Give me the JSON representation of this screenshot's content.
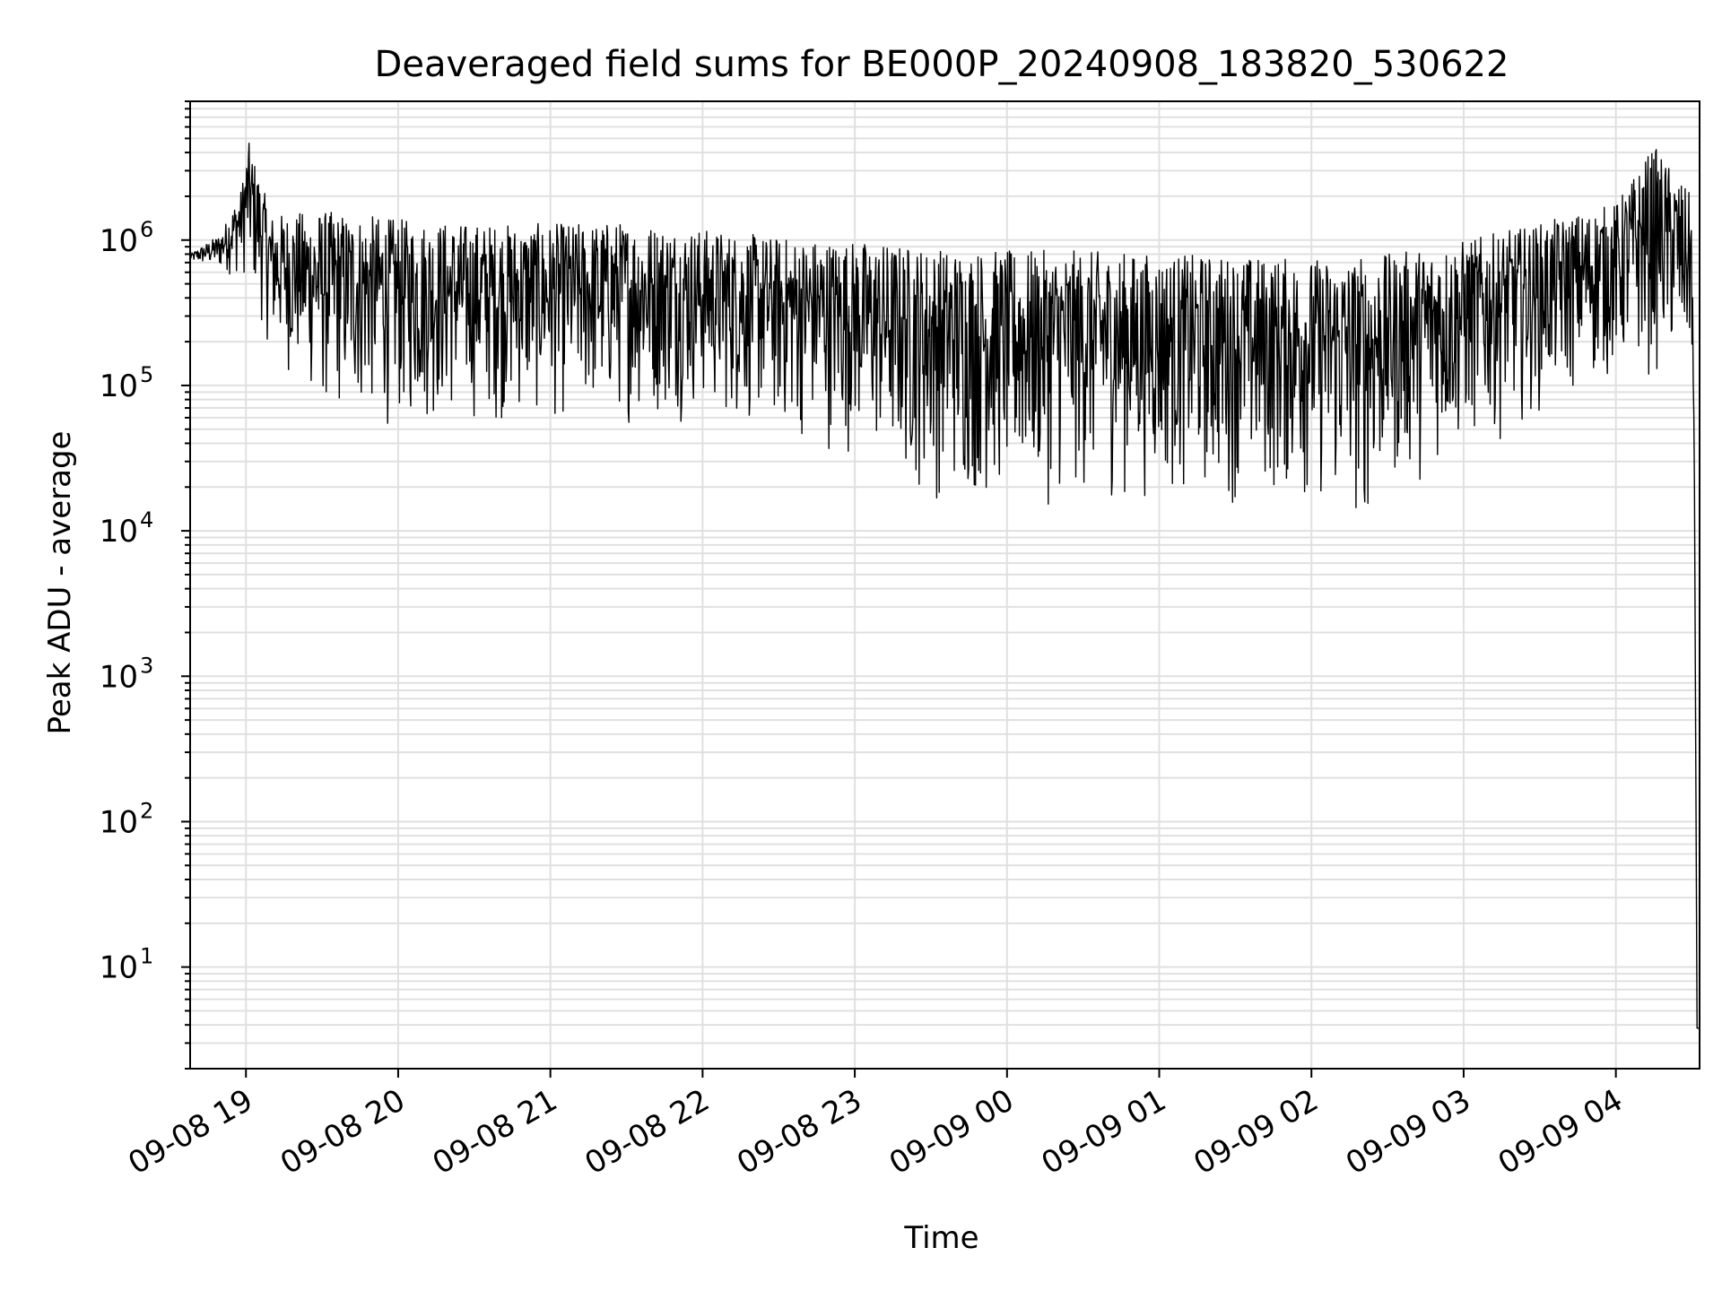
{
  "chart_data": {
    "type": "line",
    "title": "Deaveraged field sums for BE000P_20240908_183820_530622",
    "xlabel": "Time",
    "ylabel": "Peak ADU - average",
    "yscale": "log",
    "ylim": [
      2,
      9000000
    ],
    "xlim": [
      "2024-09-08 18:38",
      "2024-09-09 04:33"
    ],
    "grid": true,
    "x_ticks": [
      "09-08 19",
      "09-08 20",
      "09-08 21",
      "09-08 22",
      "09-08 23",
      "09-09 00",
      "09-09 01",
      "09-09 02",
      "09-09 03",
      "09-09 04"
    ],
    "y_ticks": [
      {
        "base": "10",
        "exp": "1",
        "value": 10
      },
      {
        "base": "10",
        "exp": "2",
        "value": 100
      },
      {
        "base": "10",
        "exp": "3",
        "value": 1000
      },
      {
        "base": "10",
        "exp": "4",
        "value": 10000
      },
      {
        "base": "10",
        "exp": "5",
        "value": 100000
      },
      {
        "base": "10",
        "exp": "6",
        "value": 1000000
      }
    ],
    "series": [
      {
        "color": "#000000",
        "description_of_envelope": "dense oscillating trace",
        "upper_envelope": [
          [
            "2024-09-08 18:38",
            800000
          ],
          [
            "2024-09-08 18:50",
            1100000
          ],
          [
            "2024-09-08 18:58",
            2200000
          ],
          [
            "2024-09-08 19:01",
            4800000
          ],
          [
            "2024-09-08 19:10",
            1500000
          ],
          [
            "2024-09-08 19:30",
            1600000
          ],
          [
            "2024-09-08 20:00",
            1400000
          ],
          [
            "2024-09-08 20:30",
            1300000
          ],
          [
            "2024-09-08 21:00",
            1300000
          ],
          [
            "2024-09-08 21:30",
            1350000
          ],
          [
            "2024-09-08 22:00",
            1200000
          ],
          [
            "2024-09-08 22:30",
            1050000
          ],
          [
            "2024-09-08 23:00",
            1000000
          ],
          [
            "2024-09-08 23:30",
            900000
          ],
          [
            "2024-09-09 00:00",
            850000
          ],
          [
            "2024-09-09 00:30",
            850000
          ],
          [
            "2024-09-09 01:00",
            800000
          ],
          [
            "2024-09-09 01:30",
            780000
          ],
          [
            "2024-09-09 02:00",
            750000
          ],
          [
            "2024-09-09 02:30",
            800000
          ],
          [
            "2024-09-09 03:00",
            1000000
          ],
          [
            "2024-09-09 03:30",
            1300000
          ],
          [
            "2024-09-09 04:00",
            1800000
          ],
          [
            "2024-09-09 04:15",
            4500000
          ],
          [
            "2024-09-09 04:30",
            2000000
          ],
          [
            "2024-09-09 04:33",
            3.8
          ]
        ],
        "lower_envelope": [
          [
            "2024-09-08 18:38",
            700000
          ],
          [
            "2024-09-08 19:00",
            500000
          ],
          [
            "2024-09-08 19:10",
            150000
          ],
          [
            "2024-09-08 19:30",
            55000
          ],
          [
            "2024-09-08 20:00",
            45000
          ],
          [
            "2024-09-08 20:30",
            50000
          ],
          [
            "2024-09-08 21:00",
            50000
          ],
          [
            "2024-09-08 21:30",
            50000
          ],
          [
            "2024-09-08 22:00",
            55000
          ],
          [
            "2024-09-08 22:30",
            40000
          ],
          [
            "2024-09-08 23:00",
            30000
          ],
          [
            "2024-09-08 23:30",
            14000
          ],
          [
            "2024-09-09 00:00",
            13000
          ],
          [
            "2024-09-09 00:30",
            14000
          ],
          [
            "2024-09-09 01:00",
            15000
          ],
          [
            "2024-09-09 01:30",
            14000
          ],
          [
            "2024-09-09 02:00",
            13000
          ],
          [
            "2024-09-09 02:20",
            8500
          ],
          [
            "2024-09-09 02:30",
            15000
          ],
          [
            "2024-09-09 03:00",
            30000
          ],
          [
            "2024-09-09 03:30",
            60000
          ],
          [
            "2024-09-09 04:00",
            100000
          ],
          [
            "2024-09-09 04:30",
            100000
          ],
          [
            "2024-09-09 04:33",
            3.8
          ]
        ]
      }
    ]
  }
}
